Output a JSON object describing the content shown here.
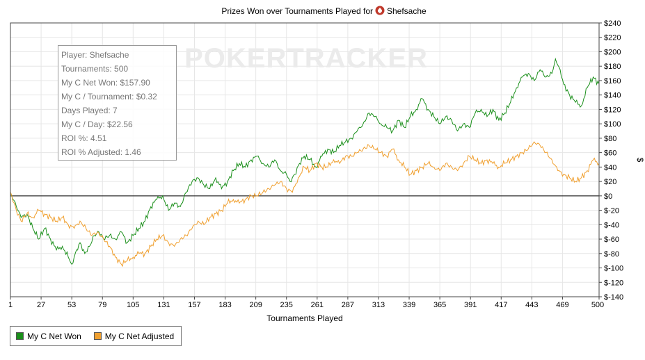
{
  "chart_data": {
    "type": "line",
    "title": "Prizes Won over Tournaments Played for",
    "player_name": "Shefsache",
    "watermark": "POKERTRACKER",
    "xlabel": "Tournaments Played",
    "ylabel": "$",
    "xlim": [
      1,
      500
    ],
    "ylim": [
      -140,
      240
    ],
    "x_ticks": [
      "1",
      "27",
      "53",
      "79",
      "105",
      "131",
      "157",
      "183",
      "209",
      "235",
      "261",
      "287",
      "313",
      "339",
      "365",
      "391",
      "417",
      "443",
      "469",
      "500"
    ],
    "y_ticks": [
      "$240",
      "$220",
      "$200",
      "$180",
      "$160",
      "$140",
      "$120",
      "$100",
      "$80",
      "$60",
      "$40",
      "$20",
      "$0",
      "$-20",
      "$-40",
      "$-60",
      "$-80",
      "$-100",
      "$-120",
      "$-140"
    ],
    "grid": true,
    "legend_position": "bottom-left",
    "series": [
      {
        "name": "My C Net Won",
        "color": "#1a8f1a",
        "points": [
          [
            1,
            5
          ],
          [
            6,
            -15
          ],
          [
            10,
            -30
          ],
          [
            15,
            -25
          ],
          [
            20,
            -45
          ],
          [
            25,
            -60
          ],
          [
            30,
            -45
          ],
          [
            35,
            -60
          ],
          [
            40,
            -75
          ],
          [
            45,
            -70
          ],
          [
            50,
            -85
          ],
          [
            53,
            -95
          ],
          [
            57,
            -75
          ],
          [
            60,
            -65
          ],
          [
            64,
            -80
          ],
          [
            68,
            -70
          ],
          [
            72,
            -55
          ],
          [
            76,
            -50
          ],
          [
            80,
            -60
          ],
          [
            85,
            -55
          ],
          [
            90,
            -60
          ],
          [
            95,
            -50
          ],
          [
            100,
            -65
          ],
          [
            105,
            -55
          ],
          [
            110,
            -45
          ],
          [
            115,
            -35
          ],
          [
            120,
            -15
          ],
          [
            125,
            -5
          ],
          [
            130,
            0
          ],
          [
            135,
            -20
          ],
          [
            140,
            -10
          ],
          [
            145,
            -15
          ],
          [
            150,
            5
          ],
          [
            155,
            20
          ],
          [
            160,
            25
          ],
          [
            165,
            15
          ],
          [
            170,
            10
          ],
          [
            175,
            25
          ],
          [
            180,
            10
          ],
          [
            185,
            20
          ],
          [
            190,
            35
          ],
          [
            195,
            45
          ],
          [
            200,
            40
          ],
          [
            205,
            50
          ],
          [
            210,
            55
          ],
          [
            215,
            45
          ],
          [
            220,
            40
          ],
          [
            225,
            50
          ],
          [
            230,
            35
          ],
          [
            235,
            30
          ],
          [
            238,
            20
          ],
          [
            242,
            30
          ],
          [
            246,
            45
          ],
          [
            250,
            55
          ],
          [
            255,
            50
          ],
          [
            260,
            40
          ],
          [
            265,
            55
          ],
          [
            270,
            65
          ],
          [
            275,
            60
          ],
          [
            280,
            70
          ],
          [
            285,
            75
          ],
          [
            290,
            80
          ],
          [
            295,
            90
          ],
          [
            300,
            100
          ],
          [
            305,
            115
          ],
          [
            310,
            110
          ],
          [
            315,
            100
          ],
          [
            320,
            95
          ],
          [
            325,
            90
          ],
          [
            330,
            105
          ],
          [
            335,
            95
          ],
          [
            340,
            110
          ],
          [
            345,
            120
          ],
          [
            350,
            135
          ],
          [
            355,
            120
          ],
          [
            360,
            110
          ],
          [
            365,
            100
          ],
          [
            370,
            110
          ],
          [
            375,
            105
          ],
          [
            380,
            90
          ],
          [
            385,
            100
          ],
          [
            390,
            95
          ],
          [
            395,
            115
          ],
          [
            400,
            120
          ],
          [
            405,
            110
          ],
          [
            410,
            120
          ],
          [
            415,
            105
          ],
          [
            420,
            115
          ],
          [
            425,
            130
          ],
          [
            430,
            150
          ],
          [
            435,
            165
          ],
          [
            440,
            170
          ],
          [
            445,
            160
          ],
          [
            450,
            175
          ],
          [
            455,
            165
          ],
          [
            460,
            170
          ],
          [
            463,
            190
          ],
          [
            467,
            175
          ],
          [
            470,
            155
          ],
          [
            475,
            140
          ],
          [
            480,
            130
          ],
          [
            485,
            125
          ],
          [
            490,
            150
          ],
          [
            495,
            165
          ],
          [
            500,
            155
          ]
        ]
      },
      {
        "name": "My C Net Adjusted",
        "color": "#f0a030",
        "points": [
          [
            1,
            5
          ],
          [
            6,
            -20
          ],
          [
            10,
            -35
          ],
          [
            15,
            -25
          ],
          [
            20,
            -30
          ],
          [
            25,
            -20
          ],
          [
            30,
            -25
          ],
          [
            35,
            -30
          ],
          [
            40,
            -35
          ],
          [
            45,
            -30
          ],
          [
            50,
            -40
          ],
          [
            55,
            -45
          ],
          [
            60,
            -35
          ],
          [
            65,
            -45
          ],
          [
            70,
            -55
          ],
          [
            75,
            -50
          ],
          [
            80,
            -60
          ],
          [
            85,
            -70
          ],
          [
            90,
            -85
          ],
          [
            95,
            -95
          ],
          [
            100,
            -90
          ],
          [
            105,
            -85
          ],
          [
            110,
            -80
          ],
          [
            115,
            -80
          ],
          [
            120,
            -70
          ],
          [
            125,
            -60
          ],
          [
            130,
            -55
          ],
          [
            135,
            -65
          ],
          [
            140,
            -70
          ],
          [
            145,
            -60
          ],
          [
            150,
            -55
          ],
          [
            155,
            -45
          ],
          [
            160,
            -35
          ],
          [
            165,
            -40
          ],
          [
            170,
            -30
          ],
          [
            175,
            -25
          ],
          [
            180,
            -20
          ],
          [
            185,
            -10
          ],
          [
            190,
            -5
          ],
          [
            195,
            -10
          ],
          [
            200,
            -5
          ],
          [
            205,
            0
          ],
          [
            210,
            0
          ],
          [
            215,
            5
          ],
          [
            220,
            10
          ],
          [
            225,
            15
          ],
          [
            230,
            20
          ],
          [
            235,
            10
          ],
          [
            240,
            5
          ],
          [
            245,
            25
          ],
          [
            250,
            40
          ],
          [
            255,
            35
          ],
          [
            260,
            45
          ],
          [
            265,
            40
          ],
          [
            270,
            40
          ],
          [
            275,
            50
          ],
          [
            280,
            45
          ],
          [
            285,
            55
          ],
          [
            290,
            55
          ],
          [
            295,
            60
          ],
          [
            300,
            65
          ],
          [
            305,
            70
          ],
          [
            310,
            65
          ],
          [
            315,
            60
          ],
          [
            320,
            55
          ],
          [
            325,
            65
          ],
          [
            330,
            50
          ],
          [
            335,
            40
          ],
          [
            340,
            30
          ],
          [
            345,
            35
          ],
          [
            350,
            40
          ],
          [
            355,
            45
          ],
          [
            360,
            40
          ],
          [
            365,
            35
          ],
          [
            370,
            45
          ],
          [
            375,
            40
          ],
          [
            380,
            35
          ],
          [
            385,
            45
          ],
          [
            390,
            55
          ],
          [
            395,
            50
          ],
          [
            400,
            45
          ],
          [
            405,
            50
          ],
          [
            410,
            45
          ],
          [
            415,
            40
          ],
          [
            420,
            45
          ],
          [
            425,
            50
          ],
          [
            430,
            55
          ],
          [
            435,
            60
          ],
          [
            440,
            65
          ],
          [
            445,
            75
          ],
          [
            450,
            70
          ],
          [
            455,
            60
          ],
          [
            460,
            50
          ],
          [
            465,
            35
          ],
          [
            470,
            30
          ],
          [
            475,
            25
          ],
          [
            480,
            20
          ],
          [
            485,
            25
          ],
          [
            490,
            35
          ],
          [
            495,
            50
          ],
          [
            500,
            45
          ]
        ]
      }
    ]
  },
  "stats": [
    "Player: Shefsache",
    "Tournaments: 500",
    "My C Net Won: $157.90",
    "My C / Tournament: $0.32",
    "Days Played: 7",
    "My C / Day: $22.56",
    "ROI %: 4.51",
    "ROI % Adjusted: 1.46"
  ],
  "legend": {
    "items": [
      {
        "label": "My C Net Won",
        "color": "#1a8f1a"
      },
      {
        "label": "My C Net Adjusted",
        "color": "#f0a030"
      }
    ]
  }
}
